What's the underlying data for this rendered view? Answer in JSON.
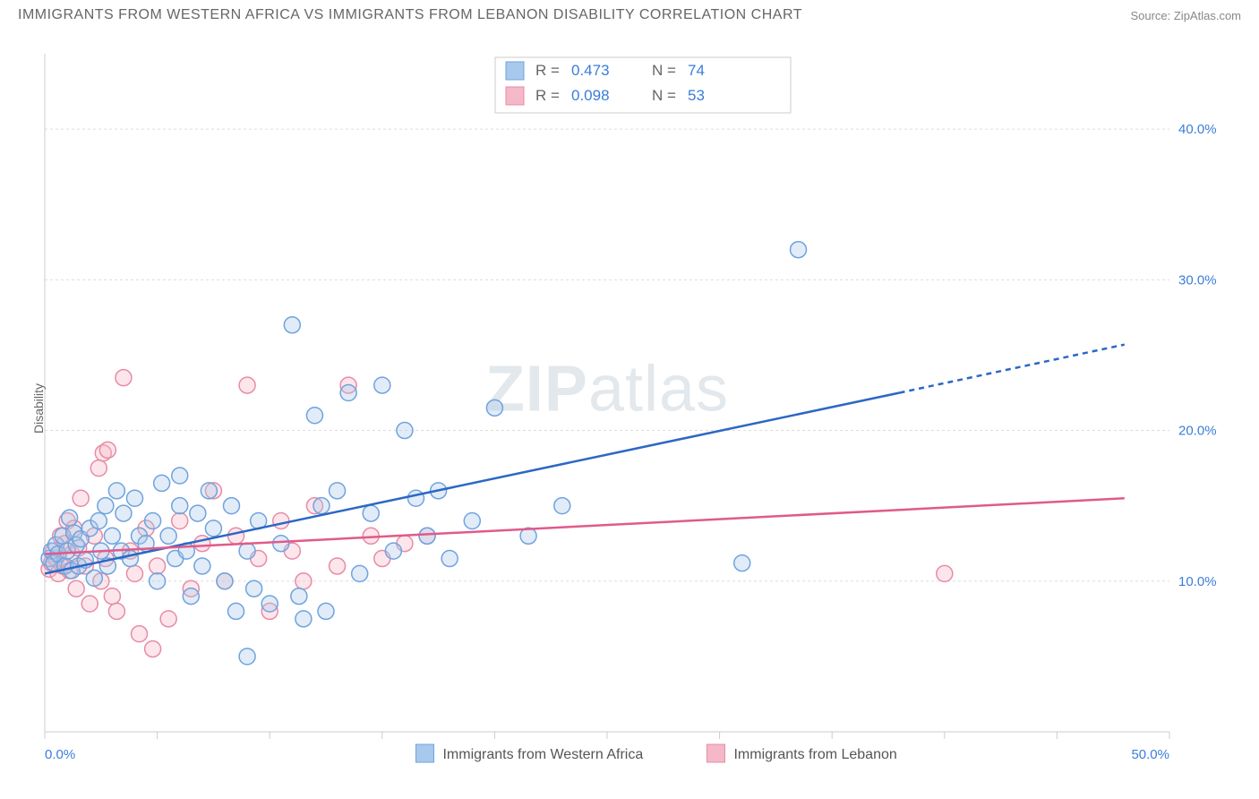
{
  "title": "IMMIGRANTS FROM WESTERN AFRICA VS IMMIGRANTS FROM LEBANON DISABILITY CORRELATION CHART",
  "source": "Source: ZipAtlas.com",
  "watermark": {
    "a": "ZIP",
    "b": "atlas"
  },
  "ylabel": "Disability",
  "chart": {
    "type": "scatter",
    "xlim": [
      0,
      50
    ],
    "ylim": [
      0,
      45
    ],
    "xtick_positions": [
      0,
      5,
      10,
      15,
      20,
      25,
      30,
      35,
      40,
      45,
      50
    ],
    "xtick_labels_shown": {
      "0": "0.0%",
      "50": "50.0%"
    },
    "ytick_positions": [
      10,
      20,
      30,
      40
    ],
    "ytick_labels": {
      "10": "10.0%",
      "20": "20.0%",
      "30": "30.0%",
      "40": "40.0%"
    },
    "background": "#ffffff",
    "grid_color": "#dddddd",
    "axis_color": "#cccccc",
    "tick_label_color": "#3b7dd8",
    "marker_radius": 9,
    "fill_opacity": 0.35
  },
  "series": [
    {
      "key": "western_africa",
      "label": "Immigrants from Western Africa",
      "color_fill": "#a8c8ec",
      "color_stroke": "#6fa3de",
      "R": "0.473",
      "N": "74",
      "trend": {
        "x1": 0,
        "y1": 10.5,
        "x2": 38,
        "y2": 22.5,
        "x2_dash": 48,
        "y2_dash": 25.7,
        "color": "#2b68c4"
      },
      "points": [
        [
          0.2,
          11.5
        ],
        [
          0.3,
          12.0
        ],
        [
          0.4,
          11.2
        ],
        [
          0.5,
          12.4
        ],
        [
          0.6,
          11.8
        ],
        [
          0.8,
          13.0
        ],
        [
          0.9,
          11.0
        ],
        [
          1.0,
          12.0
        ],
        [
          1.1,
          14.2
        ],
        [
          1.2,
          10.7
        ],
        [
          1.3,
          13.2
        ],
        [
          1.4,
          12.4
        ],
        [
          1.5,
          11.0
        ],
        [
          1.6,
          12.8
        ],
        [
          1.8,
          11.4
        ],
        [
          2.0,
          13.5
        ],
        [
          2.2,
          10.2
        ],
        [
          2.4,
          14.0
        ],
        [
          2.5,
          12.0
        ],
        [
          2.7,
          15.0
        ],
        [
          2.8,
          11.0
        ],
        [
          3.0,
          13.0
        ],
        [
          3.2,
          16.0
        ],
        [
          3.4,
          12.0
        ],
        [
          3.5,
          14.5
        ],
        [
          3.8,
          11.5
        ],
        [
          4.0,
          15.5
        ],
        [
          4.2,
          13.0
        ],
        [
          4.5,
          12.5
        ],
        [
          4.8,
          14.0
        ],
        [
          5.0,
          10.0
        ],
        [
          5.2,
          16.5
        ],
        [
          5.5,
          13.0
        ],
        [
          5.8,
          11.5
        ],
        [
          6.0,
          15.0
        ],
        [
          6.3,
          12.0
        ],
        [
          6.5,
          9.0
        ],
        [
          6.8,
          14.5
        ],
        [
          7.0,
          11.0
        ],
        [
          7.3,
          16.0
        ],
        [
          7.5,
          13.5
        ],
        [
          8.0,
          10.0
        ],
        [
          8.3,
          15.0
        ],
        [
          8.5,
          8.0
        ],
        [
          9.0,
          12.0
        ],
        [
          9.3,
          9.5
        ],
        [
          9.5,
          14.0
        ],
        [
          10.0,
          8.5
        ],
        [
          10.5,
          12.5
        ],
        [
          11.0,
          27.0
        ],
        [
          11.3,
          9.0
        ],
        [
          11.5,
          7.5
        ],
        [
          12.0,
          21.0
        ],
        [
          12.3,
          15.0
        ],
        [
          12.5,
          8.0
        ],
        [
          13.0,
          16.0
        ],
        [
          13.5,
          22.5
        ],
        [
          14.0,
          10.5
        ],
        [
          14.5,
          14.5
        ],
        [
          15.0,
          23.0
        ],
        [
          15.5,
          12.0
        ],
        [
          16.0,
          20.0
        ],
        [
          16.5,
          15.5
        ],
        [
          17.0,
          13.0
        ],
        [
          17.5,
          16.0
        ],
        [
          18.0,
          11.5
        ],
        [
          19.0,
          14.0
        ],
        [
          20.0,
          21.5
        ],
        [
          21.5,
          13.0
        ],
        [
          23.0,
          15.0
        ],
        [
          31.0,
          11.2
        ],
        [
          33.5,
          32.0
        ],
        [
          9.0,
          5.0
        ],
        [
          6.0,
          17.0
        ]
      ]
    },
    {
      "key": "lebanon",
      "label": "Immigrants from Lebanon",
      "color_fill": "#f5b8c8",
      "color_stroke": "#e88ba5",
      "R": "0.098",
      "N": "53",
      "trend": {
        "x1": 0,
        "y1": 11.8,
        "x2": 48,
        "y2": 15.5,
        "color": "#e05a8a"
      },
      "points": [
        [
          0.2,
          10.8
        ],
        [
          0.3,
          11.2
        ],
        [
          0.4,
          12.0
        ],
        [
          0.5,
          11.5
        ],
        [
          0.6,
          10.5
        ],
        [
          0.7,
          13.0
        ],
        [
          0.8,
          11.0
        ],
        [
          0.9,
          12.5
        ],
        [
          1.0,
          14.0
        ],
        [
          1.1,
          10.7
        ],
        [
          1.2,
          11.8
        ],
        [
          1.3,
          13.5
        ],
        [
          1.4,
          9.5
        ],
        [
          1.5,
          12.2
        ],
        [
          1.6,
          15.5
        ],
        [
          1.8,
          11.0
        ],
        [
          2.0,
          8.5
        ],
        [
          2.2,
          13.0
        ],
        [
          2.4,
          17.5
        ],
        [
          2.5,
          10.0
        ],
        [
          2.6,
          18.5
        ],
        [
          2.7,
          11.5
        ],
        [
          2.8,
          18.7
        ],
        [
          3.0,
          9.0
        ],
        [
          3.2,
          8.0
        ],
        [
          3.5,
          23.5
        ],
        [
          3.8,
          12.0
        ],
        [
          4.0,
          10.5
        ],
        [
          4.2,
          6.5
        ],
        [
          4.5,
          13.5
        ],
        [
          5.0,
          11.0
        ],
        [
          5.5,
          7.5
        ],
        [
          6.0,
          14.0
        ],
        [
          6.5,
          9.5
        ],
        [
          7.0,
          12.5
        ],
        [
          7.5,
          16.0
        ],
        [
          8.0,
          10.0
        ],
        [
          8.5,
          13.0
        ],
        [
          9.0,
          23.0
        ],
        [
          9.5,
          11.5
        ],
        [
          10.0,
          8.0
        ],
        [
          10.5,
          14.0
        ],
        [
          11.0,
          12.0
        ],
        [
          11.5,
          10.0
        ],
        [
          12.0,
          15.0
        ],
        [
          13.0,
          11.0
        ],
        [
          13.5,
          23.0
        ],
        [
          14.5,
          13.0
        ],
        [
          15.0,
          11.5
        ],
        [
          16.0,
          12.5
        ],
        [
          17.0,
          13.0
        ],
        [
          40.0,
          10.5
        ],
        [
          4.8,
          5.5
        ]
      ]
    }
  ],
  "stat_box": {
    "rows": [
      {
        "series": "western_africa",
        "r_label": "R =",
        "n_label": "N ="
      },
      {
        "series": "lebanon",
        "r_label": "R =",
        "n_label": "N ="
      }
    ]
  },
  "legend": {
    "items": [
      {
        "series": "western_africa"
      },
      {
        "series": "lebanon"
      }
    ]
  }
}
